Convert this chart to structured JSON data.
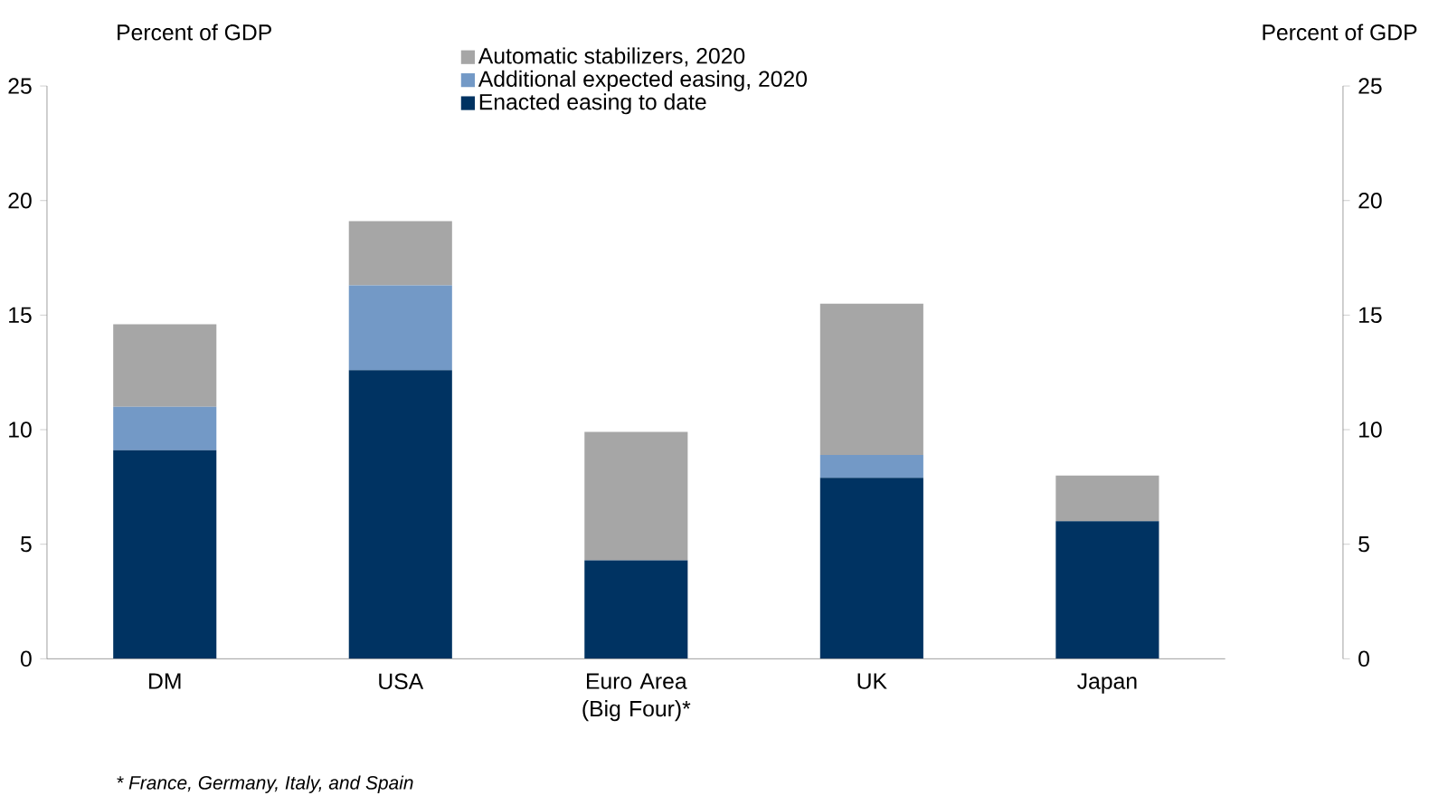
{
  "chart_data": {
    "type": "bar",
    "stacked": true,
    "categories": [
      "DM",
      "USA",
      "Euro Area (Big Four)*",
      "UK",
      "Japan"
    ],
    "series": [
      {
        "name": "Enacted easing to date",
        "color": "#003362",
        "values": [
          9.1,
          12.6,
          4.3,
          7.9,
          6.0
        ]
      },
      {
        "name": "Additional expected easing, 2020",
        "color": "#7399c6",
        "values": [
          1.9,
          3.7,
          0,
          1.0,
          0
        ]
      },
      {
        "name": "Automatic stabilizers, 2020",
        "color": "#a6a6a6",
        "values": [
          3.6,
          2.8,
          5.6,
          6.6,
          2.0
        ]
      }
    ],
    "ylabel": "Percent of GDP",
    "y2label": "Percent of GDP",
    "ylim": [
      0,
      25
    ],
    "yticks": [
      0,
      5,
      10,
      15,
      20,
      25
    ],
    "y2lim": [
      0,
      25
    ],
    "y2ticks": [
      0,
      5,
      10,
      15,
      20,
      25
    ],
    "legend": "top",
    "grid": false,
    "annotations": [
      "* France, Germany, Italy, and Spain"
    ]
  }
}
